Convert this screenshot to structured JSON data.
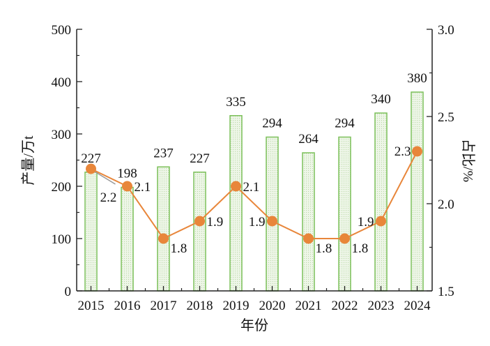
{
  "chart_data": {
    "type": "bar+line",
    "categories": [
      "2015",
      "2016",
      "2017",
      "2018",
      "2019",
      "2020",
      "2021",
      "2022",
      "2023",
      "2024"
    ],
    "series": [
      {
        "name": "产量",
        "type": "bar",
        "axis": "left",
        "values": [
          227,
          198,
          237,
          227,
          335,
          294,
          264,
          294,
          340,
          380
        ],
        "labels": [
          "227",
          "198",
          "237",
          "227",
          "335",
          "294",
          "264",
          "294",
          "340",
          "380"
        ]
      },
      {
        "name": "占比",
        "type": "line",
        "axis": "right",
        "values": [
          2.2,
          2.1,
          1.8,
          1.9,
          2.1,
          1.9,
          1.8,
          1.8,
          1.9,
          2.3
        ],
        "labels": [
          "2.2",
          "2.1",
          "1.8",
          "1.9",
          "2.1",
          "1.9",
          "1.8",
          "1.8",
          "1.9",
          "2.3"
        ]
      }
    ],
    "xlabel": "年份",
    "ylabel": "产量/万t",
    "y2label": "占比/%",
    "ylim": [
      0,
      500
    ],
    "y2lim": [
      1.5,
      3.0
    ],
    "yticks": [
      "0",
      "100",
      "200",
      "300",
      "400",
      "500"
    ],
    "y2ticks": [
      "1.5",
      "2.0",
      "2.5",
      "3.0"
    ],
    "grid": false,
    "colors": {
      "bar_fill": "#e4f0dc",
      "bar_edge": "#7cc05a",
      "line": "#e8863a",
      "marker": "#e8863a",
      "leader": "#999999"
    }
  }
}
